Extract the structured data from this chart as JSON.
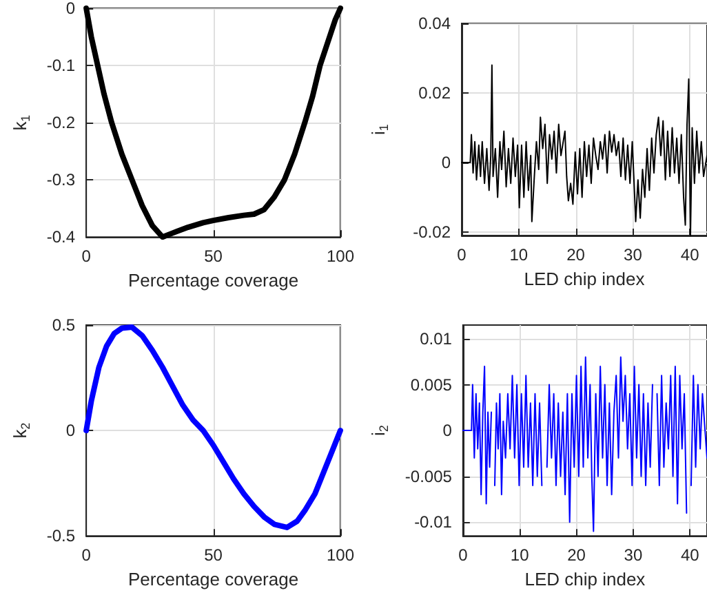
{
  "chart_data": [
    {
      "type": "line",
      "xlabel": "Percentage coverage",
      "ylabel": "k$_{1}$",
      "xlim": [
        0,
        100
      ],
      "xticks": [
        0,
        50,
        100
      ],
      "ylim": [
        -0.4,
        0
      ],
      "yticks": [
        -0.4,
        -0.3,
        -0.2,
        -0.1,
        0
      ],
      "grid": true,
      "series": [
        {
          "color": "#000000",
          "x": [
            0,
            2,
            4.5,
            7,
            10,
            14,
            18,
            22,
            26,
            30,
            34,
            40,
            46,
            50,
            56,
            62,
            66,
            70,
            74,
            78,
            82,
            86,
            89,
            92,
            95,
            98,
            100
          ],
          "values": [
            0,
            -0.05,
            -0.1,
            -0.15,
            -0.2,
            -0.255,
            -0.3,
            -0.345,
            -0.38,
            -0.4,
            -0.393,
            -0.383,
            -0.375,
            -0.371,
            -0.366,
            -0.362,
            -0.36,
            -0.352,
            -0.33,
            -0.3,
            -0.255,
            -0.2,
            -0.155,
            -0.1,
            -0.06,
            -0.02,
            0
          ]
        }
      ]
    },
    {
      "type": "line",
      "xlabel": "LED chip index",
      "ylabel": "i$_{1}$",
      "xlim": [
        0,
        43
      ],
      "xticks": [
        0,
        10,
        20,
        30,
        40
      ],
      "ylim": [
        -0.021,
        0.04
      ],
      "yticks": [
        -0.02,
        0,
        0.02,
        0.04
      ],
      "grid": true,
      "series": [
        {
          "color": "#000000",
          "x": [
            0,
            1.5,
            1.7,
            2,
            2.3,
            2.6,
            3,
            3.3,
            3.6,
            4,
            4.4,
            4.8,
            5.1,
            5.3,
            5.5,
            5.9,
            6.3,
            6.7,
            7,
            7.4,
            7.8,
            8.2,
            8.6,
            9,
            9.4,
            9.8,
            10.1,
            10.5,
            10.9,
            11.3,
            11.7,
            12.1,
            12.3,
            12.7,
            13.1,
            13.5,
            13.8,
            14.2,
            14.6,
            15,
            15.4,
            15.8,
            16.2,
            16.6,
            17,
            17.4,
            17.8,
            18.1,
            18.4,
            18.7,
            19.1,
            19.5,
            19.9,
            20.3,
            20.7,
            21.1,
            21.5,
            21.9,
            22.3,
            22.7,
            23.1,
            23.5,
            23.9,
            24.3,
            24.7,
            25.1,
            25.5,
            25.9,
            26.3,
            26.7,
            27.1,
            27.5,
            27.9,
            28.3,
            28.7,
            29.1,
            29.5,
            29.9,
            30.3,
            30.5,
            30.9,
            31.3,
            31.7,
            32.1,
            32.5,
            32.9,
            33.3,
            33.7,
            34.1,
            34.5,
            34.9,
            35.3,
            35.7,
            36.1,
            36.5,
            36.9,
            37.3,
            37.7,
            38.1,
            38.5,
            38.9,
            39.2,
            39.5,
            39.8,
            40.1,
            40.4,
            40.8,
            41.2,
            41.6,
            42,
            42.4,
            43
          ],
          "values": [
            0,
            0,
            0.008,
            -0.003,
            0.006,
            -0.005,
            0.005,
            -0.004,
            0.006,
            -0.006,
            0.004,
            -0.008,
            0.002,
            0.028,
            -0.004,
            0.004,
            -0.01,
            0.006,
            -0.002,
            0.009,
            -0.007,
            0.004,
            -0.006,
            0.007,
            -0.004,
            0.005,
            -0.013,
            0.005,
            -0.01,
            0.006,
            -0.008,
            0.002,
            -0.017,
            -0.005,
            0.006,
            -0.002,
            0.013,
            0.004,
            0.011,
            -0.006,
            0.008,
            0.001,
            0.009,
            -0.003,
            0.011,
            0.002,
            0.006,
            0.009,
            -0.004,
            -0.011,
            -0.006,
            -0.012,
            0.003,
            -0.009,
            0.004,
            -0.01,
            0.006,
            -0.004,
            0.005,
            -0.006,
            0.007,
            0.002,
            -0.002,
            0.006,
            0.001,
            0.008,
            -0.003,
            0.009,
            0.003,
            0.008,
            0.002,
            0.006,
            -0.004,
            0.007,
            -0.005,
            0.005,
            -0.006,
            0.006,
            -0.009,
            -0.017,
            -0.005,
            -0.016,
            -0.002,
            -0.01,
            0.004,
            -0.008,
            0.007,
            -0.003,
            0.008,
            0.013,
            0.002,
            0.012,
            -0.005,
            0.009,
            -0.004,
            0.01,
            -0.003,
            0.007,
            -0.006,
            0.008,
            -0.01,
            -0.018,
            0.011,
            0.024,
            -0.021,
            0.01,
            -0.006,
            0.009,
            -0.003,
            0.006,
            -0.004,
            0.002
          ]
        }
      ]
    },
    {
      "type": "line",
      "xlabel": "Percentage coverage",
      "ylabel": "k$_{2}$",
      "xlim": [
        0,
        100
      ],
      "xticks": [
        0,
        50,
        100
      ],
      "ylim": [
        -0.5,
        0.5
      ],
      "yticks": [
        -0.5,
        0,
        0.5
      ],
      "grid": true,
      "series": [
        {
          "color": "#0000ff",
          "x": [
            0,
            2,
            5,
            8,
            11,
            14,
            18,
            22,
            26,
            30,
            34,
            38,
            42,
            46,
            50,
            54,
            58,
            62,
            66,
            70,
            74,
            79,
            83,
            86,
            90,
            94,
            97,
            100
          ],
          "values": [
            0,
            0.14,
            0.3,
            0.4,
            0.46,
            0.485,
            0.49,
            0.45,
            0.38,
            0.3,
            0.21,
            0.12,
            0.05,
            0,
            -0.07,
            -0.15,
            -0.23,
            -0.3,
            -0.36,
            -0.41,
            -0.445,
            -0.46,
            -0.43,
            -0.38,
            -0.3,
            -0.18,
            -0.09,
            0
          ]
        }
      ]
    },
    {
      "type": "line",
      "xlabel": "LED chip index",
      "ylabel": "i$_{2}$",
      "xlim": [
        0,
        43
      ],
      "xticks": [
        0,
        10,
        20,
        30,
        40
      ],
      "ylim": [
        -0.0115,
        0.0115
      ],
      "yticks": [
        -0.01,
        -0.005,
        0,
        0.005,
        0.01
      ],
      "grid": true,
      "series": [
        {
          "color": "#0000ff",
          "x": [
            0,
            1.5,
            1.7,
            2,
            2.3,
            2.6,
            2.9,
            3.2,
            3.5,
            3.8,
            4.1,
            4.4,
            4.7,
            5,
            5.3,
            5.6,
            5.9,
            6.2,
            6.5,
            6.8,
            7.1,
            7.5,
            7.9,
            8.3,
            8.7,
            9.1,
            9.5,
            9.9,
            10.3,
            10.7,
            11.1,
            11.5,
            11.9,
            12.3,
            12.7,
            13.1,
            13.5,
            13.9,
            14.4,
            14.8,
            15.2,
            15.6,
            16,
            16.4,
            16.8,
            17.2,
            17.6,
            18,
            18.4,
            18.8,
            19.2,
            19.6,
            20,
            20.4,
            20.8,
            21.2,
            21.6,
            22,
            22.4,
            22.7,
            23,
            23.4,
            23.8,
            24.2,
            24.6,
            25,
            25.4,
            25.8,
            26.2,
            26.6,
            27,
            27.4,
            27.8,
            28.2,
            28.6,
            29,
            29.4,
            29.8,
            30.2,
            30.6,
            31,
            31.4,
            31.8,
            32.2,
            32.6,
            33,
            33.4,
            33.8,
            34.2,
            34.6,
            35,
            35.4,
            35.8,
            36.2,
            36.6,
            37,
            37.4,
            37.8,
            38.2,
            38.6,
            39,
            39.4,
            39.8,
            40.2,
            40.6,
            41,
            41.4,
            41.8,
            42.2,
            43
          ],
          "values": [
            0,
            0,
            0.005,
            -0.003,
            0.004,
            -0.002,
            0.003,
            -0.007,
            0.002,
            0.007,
            -0.008,
            0.002,
            -0.004,
            0.002,
            null,
            -0.006,
            0.003,
            -0.002,
            0.004,
            -0.007,
            0.001,
            -0.003,
            0.004,
            -0.002,
            0.006,
            -0.003,
            0.005,
            -0.006,
            0.004,
            -0.004,
            0.006,
            -0.004,
            0.003,
            -0.006,
            0.004,
            -0.005,
            0.003,
            -0.006,
            null,
            -0.004,
            0.005,
            -0.003,
            0.004,
            -0.006,
            0.003,
            -0.005,
            0.002,
            -0.007,
            0.004,
            -0.01,
            0.004,
            -0.004,
            0.006,
            -0.005,
            0.007,
            -0.004,
            0.008,
            -0.003,
            0.005,
            -0.005,
            -0.011,
            0.004,
            -0.005,
            0.007,
            -0.003,
            0.005,
            -0.006,
            0.003,
            -0.007,
            0.002,
            0.006,
            -0.003,
            0.008,
            0.001,
            0.006,
            -0.002,
            0.004,
            -0.006,
            0.007,
            -0.003,
            0.005,
            -0.005,
            0.004,
            -0.006,
            0.003,
            -0.004,
            0.005,
            null,
            0.004,
            -0.006,
            0.006,
            -0.004,
            0.003,
            -0.002,
            0.006,
            -0.005,
            0.007,
            -0.008,
            0.006,
            -0.002,
            0.004,
            -0.009,
            null,
            -0.006,
            0.006,
            -0.004,
            0.005,
            -0.002,
            0.004,
            -0.003
          ]
        }
      ]
    }
  ]
}
